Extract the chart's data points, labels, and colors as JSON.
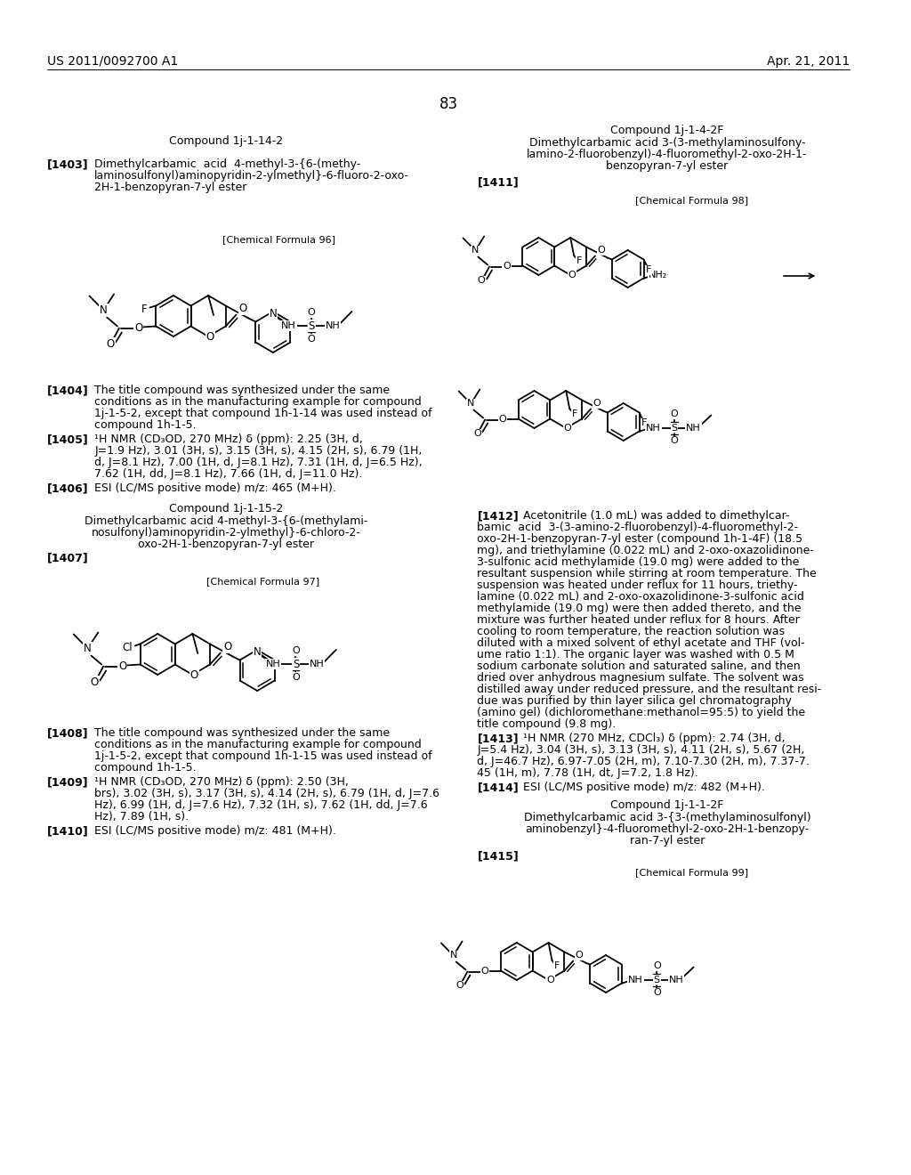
{
  "page_num": "83",
  "header_left": "US 2011/0092700 A1",
  "header_right": "Apr. 21, 2011",
  "bg": "#ffffff"
}
